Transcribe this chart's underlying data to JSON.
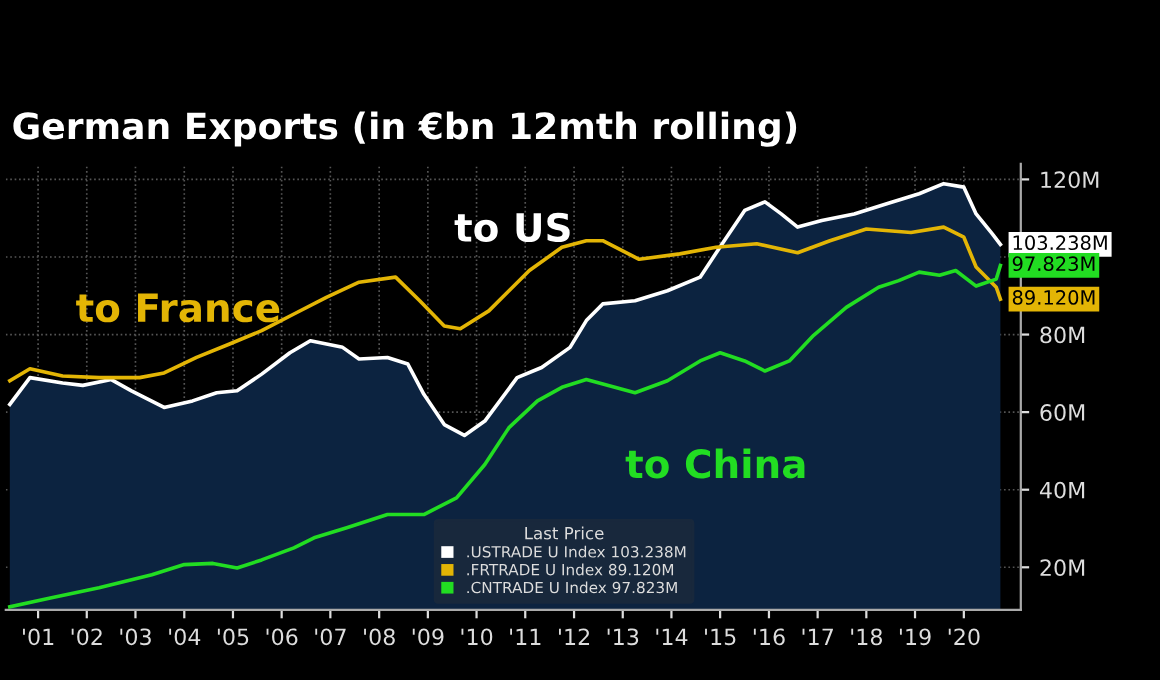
{
  "chart_data": {
    "type": "line",
    "title": "German Exports (in €bn 12mth rolling)",
    "legend_title": "Last Price",
    "legend": "bottom",
    "grid": true,
    "xlim": [
      "2000-11",
      "2021-09"
    ],
    "ylim": [
      9,
      124
    ],
    "xticks": [
      {
        "value": "2001-07",
        "label": "'01"
      },
      {
        "value": "2002-07",
        "label": "'02"
      },
      {
        "value": "2003-07",
        "label": "'03"
      },
      {
        "value": "2004-07",
        "label": "'04"
      },
      {
        "value": "2005-07",
        "label": "'05"
      },
      {
        "value": "2006-07",
        "label": "'06"
      },
      {
        "value": "2007-07",
        "label": "'07"
      },
      {
        "value": "2008-07",
        "label": "'08"
      },
      {
        "value": "2009-07",
        "label": "'09"
      },
      {
        "value": "2010-07",
        "label": "'10"
      },
      {
        "value": "2011-07",
        "label": "'11"
      },
      {
        "value": "2012-07",
        "label": "'12"
      },
      {
        "value": "2013-07",
        "label": "'13"
      },
      {
        "value": "2014-07",
        "label": "'14"
      },
      {
        "value": "2015-07",
        "label": "'15"
      },
      {
        "value": "2016-07",
        "label": "'16"
      },
      {
        "value": "2017-07",
        "label": "'17"
      },
      {
        "value": "2018-07",
        "label": "'18"
      },
      {
        "value": "2019-07",
        "label": "'19"
      },
      {
        "value": "2020-07",
        "label": "'20"
      }
    ],
    "yticks": [
      {
        "value": 20,
        "label": "20M"
      },
      {
        "value": 40,
        "label": "40M"
      },
      {
        "value": 60,
        "label": "60M"
      },
      {
        "value": 80,
        "label": "80M"
      },
      {
        "value": 100,
        "label": null
      },
      {
        "value": 120,
        "label": "120M"
      }
    ],
    "annotations": [
      "to US",
      "to France",
      "to China"
    ],
    "series": [
      {
        "name": ".USTRADE U Index 103.238M",
        "type": "area",
        "color": "#ffffff",
        "x": [
          "2000-12",
          "2001-05",
          "2002-01",
          "2002-06",
          "2003-01",
          "2003-06",
          "2004-02",
          "2004-09",
          "2005-03",
          "2005-08",
          "2006-02",
          "2006-09",
          "2007-02",
          "2007-10",
          "2008-02",
          "2008-09",
          "2009-02",
          "2009-06",
          "2009-11",
          "2010-04",
          "2010-09",
          "2011-05",
          "2011-11",
          "2012-06",
          "2012-10",
          "2013-02",
          "2013-10",
          "2014-06",
          "2015-02",
          "2015-08",
          "2016-01",
          "2016-06",
          "2016-10",
          "2017-02",
          "2017-08",
          "2018-04",
          "2018-12",
          "2019-08",
          "2020-02",
          "2020-07",
          "2020-10",
          "2021-02",
          "2021-04"
        ],
        "values": [
          62.0,
          68.9,
          67.5,
          66.9,
          68.4,
          65.5,
          61.2,
          62.9,
          65.0,
          65.5,
          69.8,
          75.3,
          78.4,
          76.7,
          73.7,
          74.1,
          72.4,
          64.6,
          56.8,
          54.0,
          57.7,
          68.9,
          71.5,
          76.7,
          83.6,
          87.9,
          88.7,
          91.3,
          94.8,
          104.2,
          112.0,
          114.2,
          111.1,
          107.7,
          109.4,
          111.1,
          113.7,
          116.3,
          118.9,
          118.0,
          111.1,
          105.9,
          103.238
        ],
        "value_labels": [
          null,
          null,
          null,
          null,
          null,
          null,
          null,
          null,
          null,
          null,
          null,
          null,
          null,
          null,
          null,
          null,
          null,
          null,
          null,
          null,
          null,
          null,
          null,
          null,
          null,
          null,
          null,
          null,
          null,
          null,
          null,
          null,
          null,
          null,
          null,
          null,
          null,
          null,
          null,
          null,
          null,
          null,
          "103.238M"
        ]
      },
      {
        "name": ".FRTRADE U Index 89.120M",
        "color": "#e3b505",
        "x": [
          "2000-12",
          "2001-05",
          "2002-01",
          "2002-10",
          "2003-08",
          "2004-02",
          "2004-10",
          "2005-06",
          "2006-02",
          "2006-10",
          "2007-06",
          "2008-02",
          "2008-11",
          "2009-05",
          "2009-11",
          "2010-03",
          "2010-10",
          "2011-08",
          "2012-04",
          "2012-10",
          "2013-02",
          "2013-11",
          "2014-09",
          "2015-06",
          "2016-04",
          "2017-02",
          "2017-10",
          "2018-07",
          "2019-06",
          "2020-02",
          "2020-07",
          "2020-10",
          "2021-03",
          "2021-04"
        ],
        "values": [
          68.1,
          71.2,
          69.3,
          68.9,
          68.9,
          70.1,
          74.1,
          77.5,
          81.0,
          85.3,
          89.6,
          93.5,
          94.8,
          88.7,
          82.2,
          81.5,
          86.1,
          96.5,
          102.5,
          104.2,
          104.2,
          99.4,
          100.8,
          102.5,
          103.4,
          101.1,
          104.2,
          107.2,
          106.3,
          107.7,
          105.1,
          97.4,
          92.2,
          89.12
        ],
        "value_labels": [
          null,
          null,
          null,
          null,
          null,
          null,
          null,
          null,
          null,
          null,
          null,
          null,
          null,
          null,
          null,
          null,
          null,
          null,
          null,
          null,
          null,
          null,
          null,
          null,
          null,
          null,
          null,
          null,
          null,
          null,
          null,
          null,
          null,
          "89.120M"
        ]
      },
      {
        "name": ".CNTRADE U Index 97.823M",
        "color": "#22dd22",
        "x": [
          "2000-12",
          "2001-10",
          "2002-10",
          "2003-11",
          "2004-07",
          "2005-02",
          "2005-08",
          "2006-02",
          "2006-10",
          "2007-03",
          "2007-11",
          "2008-09",
          "2009-06",
          "2010-02",
          "2010-09",
          "2011-03",
          "2011-10",
          "2012-04",
          "2012-10",
          "2013-10",
          "2014-06",
          "2015-02",
          "2015-07",
          "2016-01",
          "2016-06",
          "2016-12",
          "2017-06",
          "2018-02",
          "2018-10",
          "2019-03",
          "2019-08",
          "2020-01",
          "2020-05",
          "2020-10",
          "2021-03",
          "2021-04"
        ],
        "values": [
          9.8,
          12.1,
          14.7,
          18.1,
          20.7,
          21.0,
          19.8,
          21.9,
          25.0,
          27.6,
          30.2,
          33.6,
          33.6,
          37.9,
          46.5,
          56.0,
          62.9,
          66.4,
          68.4,
          65.0,
          68.1,
          73.2,
          75.3,
          73.2,
          70.6,
          73.2,
          79.8,
          87.0,
          92.2,
          93.9,
          96.1,
          95.3,
          96.5,
          92.5,
          94.3,
          97.823
        ],
        "value_labels": [
          null,
          null,
          null,
          null,
          null,
          null,
          null,
          null,
          null,
          null,
          null,
          null,
          null,
          null,
          null,
          null,
          null,
          null,
          null,
          null,
          null,
          null,
          null,
          null,
          null,
          null,
          null,
          null,
          null,
          null,
          null,
          null,
          null,
          null,
          null,
          "97.823M"
        ]
      }
    ]
  }
}
